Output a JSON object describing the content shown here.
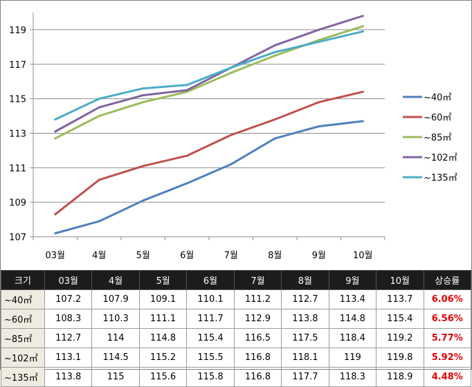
{
  "chart_data": {
    "type": "line",
    "categories": [
      "03월",
      "4월",
      "5월",
      "6월",
      "7월",
      "8월",
      "9월",
      "10월"
    ],
    "yticks": [
      "107",
      "109",
      "111",
      "113",
      "115",
      "117",
      "119"
    ],
    "ylim": [
      107,
      120
    ],
    "grid": "horizontal",
    "legend_position": "right",
    "series": [
      {
        "name": "~40㎡",
        "color": "#4f81bd",
        "values": [
          107.2,
          107.9,
          109.1,
          110.1,
          111.2,
          112.7,
          113.4,
          113.7
        ],
        "rate": "6.06%"
      },
      {
        "name": "~60㎡",
        "color": "#c0504d",
        "values": [
          108.3,
          110.3,
          111.1,
          111.7,
          112.9,
          113.8,
          114.8,
          115.4
        ],
        "rate": "6.56%"
      },
      {
        "name": "~85㎡",
        "color": "#9bbb59",
        "values": [
          112.7,
          114,
          114.8,
          115.4,
          116.5,
          117.5,
          118.4,
          119.2
        ],
        "rate": "5.77%"
      },
      {
        "name": "~102㎡",
        "color": "#8064a2",
        "values": [
          113.1,
          114.5,
          115.2,
          115.5,
          116.8,
          118.1,
          119,
          119.8
        ],
        "rate": "5.92%"
      },
      {
        "name": "~135㎡",
        "color": "#4bacc6",
        "values": [
          113.8,
          115,
          115.6,
          115.8,
          116.8,
          117.7,
          118.3,
          118.9
        ],
        "rate": "4.48%"
      }
    ]
  },
  "table": {
    "header_size": "크기",
    "header_rate": "상승률"
  }
}
